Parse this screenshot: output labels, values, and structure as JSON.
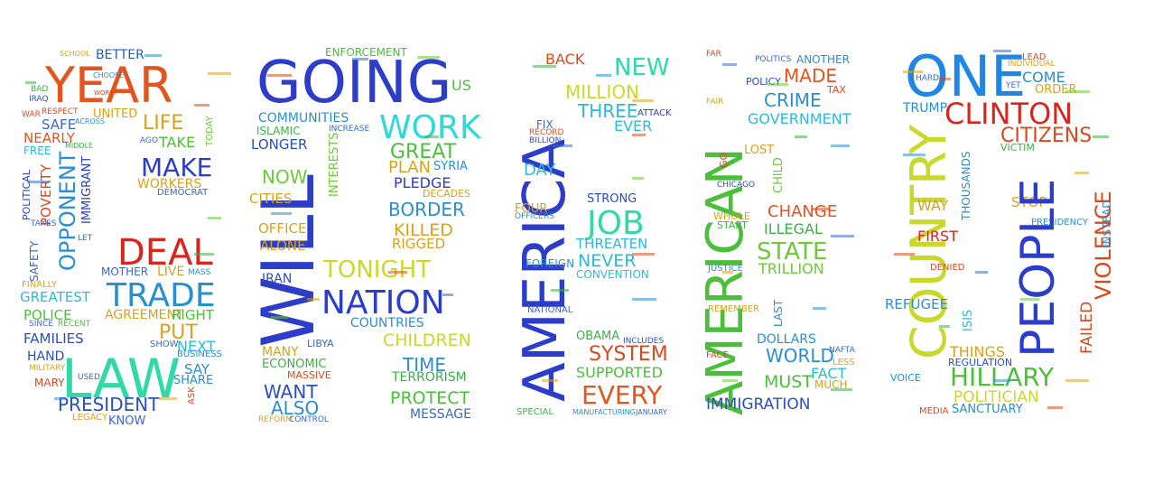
{
  "cloud": {
    "letters": [
      {
        "letter": "S",
        "words": [
          {
            "text": "YEAR",
            "color": "#e0561e"
          },
          {
            "text": "BETTER",
            "color": "#1f5fbf"
          },
          {
            "text": "SCHOOL",
            "color": "#d9a21d"
          },
          {
            "text": "CHOOSE",
            "color": "#2a8fcf"
          },
          {
            "text": "WORST",
            "color": "#d84a1e"
          },
          {
            "text": "BAD",
            "color": "#3fae49"
          },
          {
            "text": "IRAQ",
            "color": "#2b4fbd"
          },
          {
            "text": "RESPECT",
            "color": "#d84a1e"
          },
          {
            "text": "UNITED",
            "color": "#d9a21d"
          },
          {
            "text": "LIFE",
            "color": "#d9a21d"
          },
          {
            "text": "WAR",
            "color": "#d84a1e"
          },
          {
            "text": "SAFE",
            "color": "#3a67c9"
          },
          {
            "text": "ACROSS",
            "color": "#2a8fcf"
          },
          {
            "text": "NEARLY",
            "color": "#e0561e"
          },
          {
            "text": "AGO",
            "color": "#3a67c9"
          },
          {
            "text": "TAKE",
            "color": "#4bbf3a"
          },
          {
            "text": "MIDDLE",
            "color": "#3fae49"
          },
          {
            "text": "FREE",
            "color": "#2bbad9"
          },
          {
            "text": "MAKE",
            "color": "#2b3dc9"
          },
          {
            "text": "TODAY",
            "color": "#6ec93a"
          },
          {
            "text": "POLITICAL",
            "color": "#2b3dc9"
          },
          {
            "text": "POVERTY",
            "color": "#d84a1e"
          },
          {
            "text": "OPPONENT",
            "color": "#2a8fcf"
          },
          {
            "text": "IMMIGRANT",
            "color": "#2b3dc9"
          },
          {
            "text": "WORKERS",
            "color": "#d9a21d"
          },
          {
            "text": "DEMOCRAT",
            "color": "#3a67c9"
          },
          {
            "text": "TAXES",
            "color": "#3a67c9"
          },
          {
            "text": "LET",
            "color": "#3a67c9"
          },
          {
            "text": "DEAL",
            "color": "#d8261e"
          },
          {
            "text": "SAFETY",
            "color": "#3a67c9"
          },
          {
            "text": "LIVE",
            "color": "#d9a21d"
          },
          {
            "text": "MASS",
            "color": "#2a8fcf"
          },
          {
            "text": "MOTHER",
            "color": "#3a67c9"
          },
          {
            "text": "TRADE",
            "color": "#2a8fcf"
          },
          {
            "text": "FINALLY",
            "color": "#d9a21d"
          },
          {
            "text": "GREATEST",
            "color": "#2bbad9"
          },
          {
            "text": "AGREEMENT",
            "color": "#d9a21d"
          },
          {
            "text": "RIGHT",
            "color": "#4bbf3a"
          },
          {
            "text": "POLICE",
            "color": "#4bbf3a"
          },
          {
            "text": "SINCE",
            "color": "#3a67c9"
          },
          {
            "text": "RECENT",
            "color": "#4bbf3a"
          },
          {
            "text": "PUT",
            "color": "#d9a21d"
          },
          {
            "text": "FAMILIES",
            "color": "#2b4fbd"
          },
          {
            "text": "SHOW",
            "color": "#3a67c9"
          },
          {
            "text": "NEXT",
            "color": "#2bbad9"
          },
          {
            "text": "HAND",
            "color": "#2b4fbd"
          },
          {
            "text": "BUSINESS",
            "color": "#2a8fcf"
          },
          {
            "text": "MILITARY",
            "color": "#d9a21d"
          },
          {
            "text": "LAW",
            "color": "#2fd9a8"
          },
          {
            "text": "SAY",
            "color": "#2a8fcf"
          },
          {
            "text": "USED",
            "color": "#3a67c9"
          },
          {
            "text": "SHARE",
            "color": "#2a8fcf"
          },
          {
            "text": "MARY",
            "color": "#d84a1e"
          },
          {
            "text": "PRESIDENT",
            "color": "#2b4fbd"
          },
          {
            "text": "ASK",
            "color": "#d84a1e"
          },
          {
            "text": "LEGACY",
            "color": "#d9a21d"
          },
          {
            "text": "KNOW",
            "color": "#3a67c9"
          }
        ]
      },
      {
        "letter": "P",
        "words": [
          {
            "text": "GOING",
            "color": "#2b3dc9"
          },
          {
            "text": "ENFORCEMENT",
            "color": "#4bbf3a"
          },
          {
            "text": "US",
            "color": "#4bbf3a"
          },
          {
            "text": "WORK",
            "color": "#2fd9d9"
          },
          {
            "text": "COMMUNITIES",
            "color": "#2a8fcf"
          },
          {
            "text": "ISLAMIC",
            "color": "#3fae49"
          },
          {
            "text": "INCREASE",
            "color": "#3a67c9"
          },
          {
            "text": "LONGER",
            "color": "#2b4fbd"
          },
          {
            "text": "GREAT",
            "color": "#4bbf3a"
          },
          {
            "text": "PLAN",
            "color": "#d9a21d"
          },
          {
            "text": "SYRIA",
            "color": "#2a8fcf"
          },
          {
            "text": "NOW",
            "color": "#6ec93a"
          },
          {
            "text": "PLEDGE",
            "color": "#2b3dc9"
          },
          {
            "text": "WILL",
            "color": "#2b3dc9"
          },
          {
            "text": "INTERESTS",
            "color": "#6ec93a"
          },
          {
            "text": "CITIES",
            "color": "#d9a21d"
          },
          {
            "text": "DECADES",
            "color": "#d9a21d"
          },
          {
            "text": "BORDER",
            "color": "#2a8fcf"
          },
          {
            "text": "OFFICE",
            "color": "#d9a21d"
          },
          {
            "text": "KILLED",
            "color": "#d9a21d"
          },
          {
            "text": "ALONE",
            "color": "#d9a21d"
          },
          {
            "text": "RIGGED",
            "color": "#d9a21d"
          },
          {
            "text": "TONIGHT",
            "color": "#c9d92b"
          },
          {
            "text": "IRAN",
            "color": "#2b4fbd"
          },
          {
            "text": "NATION",
            "color": "#2b3dc9"
          },
          {
            "text": "COUNTRIES",
            "color": "#2a8fcf"
          },
          {
            "text": "LIBYA",
            "color": "#3a67c9"
          },
          {
            "text": "CHILDREN",
            "color": "#c9d92b"
          },
          {
            "text": "MANY",
            "color": "#d9a21d"
          },
          {
            "text": "ECONOMIC",
            "color": "#3fae49"
          },
          {
            "text": "MASSIVE",
            "color": "#d84a1e"
          },
          {
            "text": "TIME",
            "color": "#2a8fcf"
          },
          {
            "text": "TERRORISM",
            "color": "#3fae49"
          },
          {
            "text": "WANT",
            "color": "#2b4fbd"
          },
          {
            "text": "ALSO",
            "color": "#2a8fcf"
          },
          {
            "text": "PROTECT",
            "color": "#4bbf3a"
          },
          {
            "text": "MESSAGE",
            "color": "#3a67c9"
          },
          {
            "text": "REFORM",
            "color": "#d9a21d"
          },
          {
            "text": "CONTROL",
            "color": "#3a67c9"
          }
        ]
      },
      {
        "letter": "E",
        "words": [
          {
            "text": "BACK",
            "color": "#d84a1e"
          },
          {
            "text": "NEW",
            "color": "#2fd9a8"
          },
          {
            "text": "MILLION",
            "color": "#c9d92b"
          },
          {
            "text": "AMERICA",
            "color": "#2b3dc9"
          },
          {
            "text": "THREE",
            "color": "#2bbad9"
          },
          {
            "text": "ATTACK",
            "color": "#2b3dc9"
          },
          {
            "text": "EVER",
            "color": "#2bbad9"
          },
          {
            "text": "FIX",
            "color": "#3a67c9"
          },
          {
            "text": "RECORD",
            "color": "#d84a1e"
          },
          {
            "text": "BILLION",
            "color": "#2b4fbd"
          },
          {
            "text": "DAY",
            "color": "#2bbad9"
          },
          {
            "text": "STRONG",
            "color": "#2b4fbd"
          },
          {
            "text": "FOUR",
            "color": "#d9a21d"
          },
          {
            "text": "OFFICERS",
            "color": "#2a8fcf"
          },
          {
            "text": "JOB",
            "color": "#2fd9a8"
          },
          {
            "text": "THREATEN",
            "color": "#2bbad9"
          },
          {
            "text": "NEVER",
            "color": "#2bbad9"
          },
          {
            "text": "FOREIGN",
            "color": "#2a8fcf"
          },
          {
            "text": "CONVENTION",
            "color": "#2bbad9"
          },
          {
            "text": "NATIONAL",
            "color": "#3a67c9"
          },
          {
            "text": "OBAMA",
            "color": "#3fae49"
          },
          {
            "text": "SYSTEM",
            "color": "#d84a1e"
          },
          {
            "text": "INCLUDES",
            "color": "#2b4fbd"
          },
          {
            "text": "SUPPORTED",
            "color": "#4bbf3a"
          },
          {
            "text": "EVERY",
            "color": "#e0561e"
          },
          {
            "text": "SPECIAL",
            "color": "#3fae49"
          },
          {
            "text": "MANUFACTURING",
            "color": "#2a8fcf"
          },
          {
            "text": "JANUARY",
            "color": "#3a67c9"
          }
        ]
      },
      {
        "letter": "E",
        "words": [
          {
            "text": "FAR",
            "color": "#d84a1e"
          },
          {
            "text": "POLITICS",
            "color": "#3a67c9"
          },
          {
            "text": "ANOTHER",
            "color": "#2a8fcf"
          },
          {
            "text": "MADE",
            "color": "#e0561e"
          },
          {
            "text": "POLICY",
            "color": "#2b4fbd"
          },
          {
            "text": "TAX",
            "color": "#d84a1e"
          },
          {
            "text": "CRIME",
            "color": "#2a8fcf"
          },
          {
            "text": "FAIR",
            "color": "#d9a21d"
          },
          {
            "text": "GOVERNMENT",
            "color": "#2bbad9"
          },
          {
            "text": "AMERICAN",
            "color": "#4bbf3a"
          },
          {
            "text": "LOST",
            "color": "#d9a21d"
          },
          {
            "text": "GO",
            "color": "#d84a1e"
          },
          {
            "text": "CHILD",
            "color": "#6ec93a"
          },
          {
            "text": "CHICAGO",
            "color": "#2b4fbd"
          },
          {
            "text": "CHANGE",
            "color": "#e0561e"
          },
          {
            "text": "WHOLE",
            "color": "#d9a21d"
          },
          {
            "text": "ILLEGAL",
            "color": "#3fae49"
          },
          {
            "text": "START",
            "color": "#3fae49"
          },
          {
            "text": "STATE",
            "color": "#6ec93a"
          },
          {
            "text": "JUSTICE",
            "color": "#2a8fcf"
          },
          {
            "text": "TRILLION",
            "color": "#6ec93a"
          },
          {
            "text": "REMEMBER",
            "color": "#d9a21d"
          },
          {
            "text": "LAST",
            "color": "#2a8fcf"
          },
          {
            "text": "DOLLARS",
            "color": "#2a8fcf"
          },
          {
            "text": "WORLD",
            "color": "#2a8fcf"
          },
          {
            "text": "FACE",
            "color": "#d84a1e"
          },
          {
            "text": "NAFTA",
            "color": "#3a67c9"
          },
          {
            "text": "FACT",
            "color": "#2bbad9"
          },
          {
            "text": "LESS",
            "color": "#d9a21d"
          },
          {
            "text": "MUST",
            "color": "#4bbf3a"
          },
          {
            "text": "MUCH",
            "color": "#d9a21d"
          },
          {
            "text": "IMMIGRATION",
            "color": "#2b4fbd"
          }
        ]
      },
      {
        "letter": "D",
        "words": [
          {
            "text": "ONE",
            "color": "#1f86e6"
          },
          {
            "text": "LEAD",
            "color": "#d84a1e"
          },
          {
            "text": "INDIVIDUAL",
            "color": "#d9a21d"
          },
          {
            "text": "COME",
            "color": "#2a8fcf"
          },
          {
            "text": "YET",
            "color": "#3a67c9"
          },
          {
            "text": "ORDER",
            "color": "#d9a21d"
          },
          {
            "text": "HARD",
            "color": "#3a67c9"
          },
          {
            "text": "TRUMP",
            "color": "#2a8fcf"
          },
          {
            "text": "CLINTON",
            "color": "#d8261e"
          },
          {
            "text": "CITIZENS",
            "color": "#d84a1e"
          },
          {
            "text": "COUNTRY",
            "color": "#c9d92b"
          },
          {
            "text": "VICTIM",
            "color": "#3fae49"
          },
          {
            "text": "THOUSANDS",
            "color": "#2a8fcf"
          },
          {
            "text": "WAY",
            "color": "#d9a21d"
          },
          {
            "text": "STOP",
            "color": "#d9a21d"
          },
          {
            "text": "VIOLENCE",
            "color": "#d84a1e"
          },
          {
            "text": "INSTEAD",
            "color": "#2a8fcf"
          },
          {
            "text": "PRESIDENCY",
            "color": "#2a8fcf"
          },
          {
            "text": "FIRST",
            "color": "#d8261e"
          },
          {
            "text": "PEOPLE",
            "color": "#2b3dc9"
          },
          {
            "text": "DENIED",
            "color": "#d84a1e"
          },
          {
            "text": "REFUGEE",
            "color": "#2a8fcf"
          },
          {
            "text": "ISIS",
            "color": "#2bbad9"
          },
          {
            "text": "FAILED",
            "color": "#d84a1e"
          },
          {
            "text": "THINGS",
            "color": "#d9a21d"
          },
          {
            "text": "REGULATION",
            "color": "#2b4fbd"
          },
          {
            "text": "HILLARY",
            "color": "#4bbf3a"
          },
          {
            "text": "VOICE",
            "color": "#2a8fcf"
          },
          {
            "text": "POLITICIAN",
            "color": "#c9d92b"
          },
          {
            "text": "MEDIA",
            "color": "#d84a1e"
          },
          {
            "text": "SANCTUARY",
            "color": "#2a8fcf"
          }
        ]
      }
    ]
  }
}
